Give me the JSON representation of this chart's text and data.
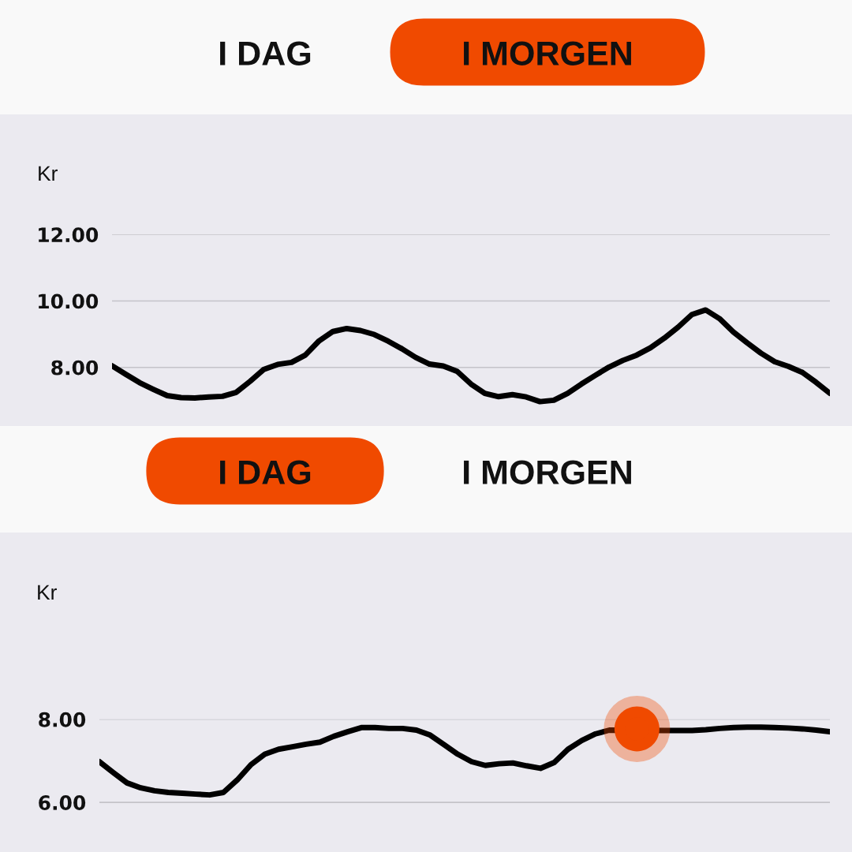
{
  "chart_data": [
    {
      "type": "line",
      "title": "I MORGEN",
      "annotations": [
        "I DAG"
      ],
      "ylabel": "Kr",
      "categories": [
        null,
        null,
        null,
        null,
        null,
        null,
        null,
        null,
        null,
        null,
        null,
        null,
        null,
        null,
        null,
        null,
        null,
        null,
        null,
        null,
        null,
        null,
        null,
        null,
        null,
        null,
        null,
        null,
        null,
        null,
        null,
        null,
        null,
        null,
        null,
        null,
        null,
        null,
        null,
        null,
        null,
        null,
        null,
        null,
        null,
        null,
        null,
        null,
        null,
        null,
        null,
        null,
        null
      ],
      "series": [
        {
          "color": "#000000",
          "values": [
            8.05,
            7.79,
            7.54,
            7.34,
            7.15,
            7.09,
            7.08,
            7.11,
            7.13,
            7.25,
            7.58,
            7.94,
            8.09,
            8.15,
            8.37,
            8.8,
            9.08,
            9.17,
            9.11,
            8.99,
            8.79,
            8.56,
            8.3,
            8.1,
            8.04,
            7.88,
            7.5,
            7.22,
            7.12,
            7.18,
            7.11,
            6.97,
            7.01,
            7.22,
            7.5,
            7.76,
            8.01,
            8.21,
            8.37,
            8.59,
            8.88,
            9.21,
            9.59,
            9.73,
            9.47,
            9.07,
            8.74,
            8.43,
            8.17,
            8.03,
            7.85,
            7.55,
            7.22
          ]
        }
      ],
      "ylim": [
        6.25,
        12
      ],
      "yticks": [
        {
          "value": 8,
          "label": "8.00"
        },
        {
          "value": 10,
          "label": "10.00"
        },
        {
          "value": 12,
          "label": "12.00"
        }
      ],
      "grid": "y",
      "tick_labels": "y"
    },
    {
      "type": "line",
      "title": "I DAG",
      "annotations": [
        "I MORGEN"
      ],
      "ylabel": "Kr",
      "categories": [
        null,
        null,
        null,
        null,
        null,
        null,
        null,
        null,
        null,
        null,
        null,
        null,
        null,
        null,
        null,
        null,
        null,
        null,
        null,
        null,
        null,
        null,
        null,
        null,
        null,
        null,
        null,
        null,
        null,
        null,
        null,
        null,
        null,
        null,
        null,
        null,
        null,
        null,
        null,
        null,
        null,
        null,
        null,
        null,
        null,
        null,
        null,
        null,
        null,
        null,
        null,
        null,
        null,
        null
      ],
      "series": [
        {
          "color": "#000000",
          "values": [
            6.98,
            6.72,
            6.47,
            6.35,
            6.28,
            6.24,
            6.22,
            6.2,
            6.18,
            6.24,
            6.54,
            6.91,
            7.16,
            7.28,
            7.34,
            7.4,
            7.45,
            7.59,
            7.7,
            7.8,
            7.8,
            7.78,
            7.78,
            7.74,
            7.62,
            7.39,
            7.16,
            6.98,
            6.89,
            6.93,
            6.95,
            6.88,
            6.82,
            6.96,
            7.28,
            7.49,
            7.65,
            7.74,
            null,
            null,
            null,
            7.73,
            7.73,
            7.73,
            7.75,
            7.78,
            7.8,
            7.81,
            7.81,
            7.8,
            7.79,
            7.77,
            7.74,
            7.7
          ]
        },
        {
          "type": "scatter",
          "color": "#f04a00",
          "values": [
            null,
            null,
            null,
            null,
            null,
            null,
            null,
            null,
            null,
            null,
            null,
            null,
            null,
            null,
            null,
            null,
            null,
            null,
            null,
            null,
            null,
            null,
            null,
            null,
            null,
            null,
            null,
            null,
            null,
            null,
            null,
            null,
            null,
            null,
            null,
            null,
            null,
            null,
            null,
            7.77,
            null,
            null,
            null,
            null,
            null,
            null,
            null,
            null,
            null,
            null,
            null,
            null,
            null,
            null
          ]
        }
      ],
      "ylim": [
        4.85,
        8
      ],
      "yticks": [
        {
          "value": 6,
          "label": "6.00"
        },
        {
          "value": 8,
          "label": "8.00"
        }
      ],
      "grid": "y",
      "tick_labels": "y"
    }
  ]
}
